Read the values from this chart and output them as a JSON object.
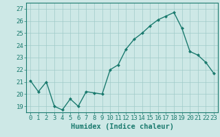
{
  "x": [
    0,
    1,
    2,
    3,
    4,
    5,
    6,
    7,
    8,
    9,
    10,
    11,
    12,
    13,
    14,
    15,
    16,
    17,
    18,
    19,
    20,
    21,
    22,
    23
  ],
  "y": [
    21.1,
    20.2,
    21.0,
    19.0,
    18.7,
    19.6,
    19.0,
    20.2,
    20.1,
    20.0,
    22.0,
    22.4,
    23.7,
    24.5,
    25.0,
    25.6,
    26.1,
    26.4,
    26.7,
    25.4,
    23.5,
    23.2,
    22.6,
    21.7
  ],
  "line_color": "#1a7a6e",
  "marker": "D",
  "marker_size": 2.0,
  "bg_color": "#cde8e6",
  "grid_color": "#a0cac8",
  "xlabel": "Humidex (Indice chaleur)",
  "xlabel_fontsize": 7.5,
  "tick_fontsize": 6.5,
  "ylim": [
    18.5,
    27.5
  ],
  "yticks": [
    19,
    20,
    21,
    22,
    23,
    24,
    25,
    26,
    27
  ],
  "xticks": [
    0,
    1,
    2,
    3,
    4,
    5,
    6,
    7,
    8,
    9,
    10,
    11,
    12,
    13,
    14,
    15,
    16,
    17,
    18,
    19,
    20,
    21,
    22,
    23
  ],
  "line_width": 1.0,
  "axis_color": "#1a7a6e"
}
